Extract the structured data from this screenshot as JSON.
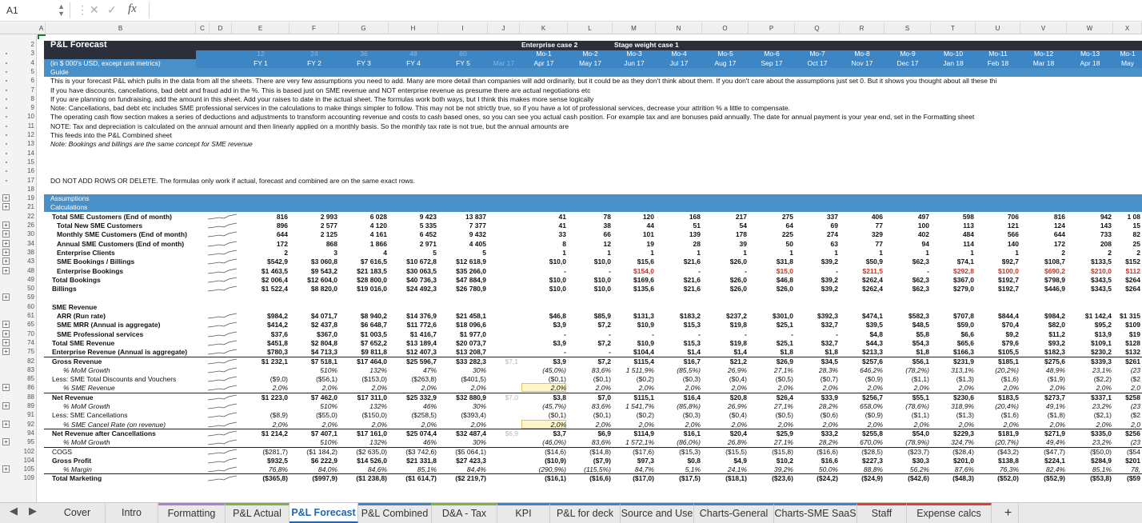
{
  "formula_bar": {
    "cell_ref": "A1",
    "formula": ""
  },
  "outline_levels": [
    "1",
    "2"
  ],
  "columns": [
    "A",
    "B",
    "C",
    "D",
    "E",
    "F",
    "G",
    "H",
    "I",
    "J",
    "K",
    "L",
    "M",
    "N",
    "O",
    "P",
    "Q",
    "R",
    "S",
    "T",
    "U",
    "V",
    "W",
    "X"
  ],
  "row_numbers": [
    "2",
    "3",
    "4",
    "5",
    "6",
    "7",
    "8",
    "9",
    "10",
    "11",
    "12",
    "13",
    "14",
    "15",
    "16",
    "17",
    "18",
    "19",
    "21",
    "22",
    "26",
    "30",
    "34",
    "38",
    "43",
    "48",
    "49",
    "50",
    "59",
    "60",
    "61",
    "65",
    "70",
    "74",
    "75",
    "82",
    "83",
    "85",
    "86",
    "88",
    "89",
    "91",
    "92",
    "94",
    "95",
    "102",
    "104",
    "105",
    "109"
  ],
  "header": {
    "title": "P&L Forecast",
    "enterprise_case": "Enterprise case 2",
    "stage_weight": "Stage weight case 1",
    "units_note": "(in $ 000's USD, except unit metrics)",
    "month_counts": [
      "12",
      "24",
      "36",
      "48",
      "60"
    ],
    "fy": [
      "FY 1",
      "FY 2",
      "FY 3",
      "FY 4",
      "FY 5"
    ],
    "j_label": "Mar 17",
    "months": [
      "Mo-1",
      "Mo-2",
      "Mo-3",
      "Mo-4",
      "Mo-5",
      "Mo-6",
      "Mo-7",
      "Mo-8",
      "Mo-9",
      "Mo-10",
      "Mo-11",
      "Mo-12",
      "Mo-13",
      "Mo-1"
    ],
    "dates": [
      "Apr 17",
      "May 17",
      "Jun 17",
      "Jul 17",
      "Aug 17",
      "Sep 17",
      "Oct 17",
      "Nov 17",
      "Dec 17",
      "Jan 18",
      "Feb 18",
      "Mar 18",
      "Apr 18",
      "May"
    ]
  },
  "guide": {
    "label": "Guide",
    "lines": [
      "This is your forecast P&L which pulls in the data from all the sheets. There are very few assumptions you need to add. Many are more detail than companies will add ordinarily, but it could be as they don't think about them. If you don't care about the assumptions just set 0. But it shows you thought about all these thi",
      "If you have discounts, cancellations, bad debt and fraud add in the %. This is based just on SME revenue and NOT enterprise revenue as presume there are actual negotiations etc",
      "If you are planning on fundraising, add the amount in this sheet. Add your raises to date in the actual sheet. The formulas work both ways, but I think this makes more sense logically",
      "Note: Cancellations, bad debt etc includes SME professional services in the calculations to make things simpler to follow. This may not be not strictly true, so if you have a lot of professional services, decrease your attrition % a little to compensate.",
      "The operating cash flow section makes a series of deductions and adjustments to transform accounting revenue and costs to cash based ones, so you can see you actual cash position. For example tax and are bonuses paid annually. The date for annual payment is your year end, set in the Formatting sheet",
      "NOTE: Tax and depreciation is calculated on the annual amount and then linearly applied on a monthly basis. So the monthly tax rate is not true, but the annual amounts are",
      "This feeds into the P&L Combined sheet",
      "Note: Bookings and billings are the same concept for SME revenue"
    ],
    "warning": "DO NOT ADD ROWS OR DELETE. The formulas only work if actual, forecast and combined are on the same exact rows."
  },
  "sections": {
    "assumptions": "Assumptions",
    "calculations": "Calculations"
  },
  "rows": [
    {
      "label": "Total SME Customers (End of month)",
      "bold": true,
      "fy": [
        "816",
        "2 993",
        "6 028",
        "9 423",
        "13 837"
      ],
      "j": "",
      "m": [
        "41",
        "78",
        "120",
        "168",
        "217",
        "275",
        "337",
        "406",
        "497",
        "598",
        "706",
        "816",
        "942",
        "1 08"
      ]
    },
    {
      "label": "Total New SME Customers",
      "bold": true,
      "fy": [
        "896",
        "2 577",
        "4 120",
        "5 335",
        "7 377"
      ],
      "j": "",
      "m": [
        "41",
        "38",
        "44",
        "51",
        "54",
        "64",
        "69",
        "77",
        "100",
        "113",
        "121",
        "124",
        "143",
        "15"
      ]
    },
    {
      "label": "Monthly SME Customers (End of month)",
      "bold": true,
      "fy": [
        "644",
        "2 125",
        "4 161",
        "6 452",
        "9 432"
      ],
      "j": "",
      "m": [
        "33",
        "66",
        "101",
        "139",
        "178",
        "225",
        "274",
        "329",
        "402",
        "484",
        "566",
        "644",
        "733",
        "82"
      ]
    },
    {
      "label": "Annual SME Customers (End of month)",
      "bold": true,
      "fy": [
        "172",
        "868",
        "1 866",
        "2 971",
        "4 405"
      ],
      "j": "",
      "m": [
        "8",
        "12",
        "19",
        "28",
        "39",
        "50",
        "63",
        "77",
        "94",
        "114",
        "140",
        "172",
        "208",
        "25"
      ]
    },
    {
      "label": "Enterprise Clients",
      "bold": true,
      "fy": [
        "2",
        "3",
        "4",
        "5",
        "5"
      ],
      "j": "",
      "m": [
        "1",
        "1",
        "1",
        "1",
        "1",
        "1",
        "1",
        "1",
        "1",
        "1",
        "1",
        "2",
        "2",
        "2"
      ]
    },
    {
      "label": "SME Bookings / Billings",
      "bold": true,
      "fy": [
        "$542,9",
        "$3 060,8",
        "$7 616,5",
        "$10 672,8",
        "$12 618,9"
      ],
      "j": "",
      "m": [
        "$10,0",
        "$10,0",
        "$15,6",
        "$21,6",
        "$26,0",
        "$31,8",
        "$39,2",
        "$50,9",
        "$62,3",
        "$74,1",
        "$92,7",
        "$108,7",
        "$133,5",
        "$152"
      ]
    },
    {
      "label": "Enterprise Bookings",
      "bold": true,
      "fy": [
        "$1 463,5",
        "$9 543,2",
        "$21 183,5",
        "$30 063,5",
        "$35 266,0"
      ],
      "j": "",
      "m": [
        "-",
        "-",
        "$154,0",
        "-",
        "-",
        "$15,0",
        "-",
        "$211,5",
        "-",
        "$292,8",
        "$100,0",
        "$690,2",
        "$210,0",
        "$112"
      ]
    },
    {
      "label": "Total Bookings",
      "bold": true,
      "fy": [
        "$2 006,4",
        "$12 604,0",
        "$28 800,0",
        "$40 736,3",
        "$47 884,9"
      ],
      "j": "",
      "m": [
        "$10,0",
        "$10,0",
        "$169,6",
        "$21,6",
        "$26,0",
        "$46,8",
        "$39,2",
        "$262,4",
        "$62,3",
        "$367,0",
        "$192,7",
        "$798,9",
        "$343,5",
        "$264"
      ]
    },
    {
      "label": "Billings",
      "bold": true,
      "fy": [
        "$1 522,4",
        "$8 820,0",
        "$19 016,0",
        "$24 492,3",
        "$26 780,9"
      ],
      "j": "",
      "m": [
        "$10,0",
        "$10,0",
        "$135,6",
        "$21,6",
        "$26,0",
        "$26,0",
        "$39,2",
        "$262,4",
        "$62,3",
        "$279,0",
        "$192,7",
        "$446,9",
        "$343,5",
        "$264"
      ]
    },
    {
      "label": "SME Revenue",
      "bold": true,
      "fy": [
        "",
        "",
        "",
        "",
        ""
      ],
      "j": "",
      "m": [
        "",
        "",
        "",
        "",
        "",
        "",
        "",
        "",
        "",
        "",
        "",
        "",
        "",
        ""
      ]
    },
    {
      "label": "ARR (Run rate)",
      "bold": true,
      "fy": [
        "$984,2",
        "$4 071,7",
        "$8 940,2",
        "$14 376,9",
        "$21 458,1"
      ],
      "j": "",
      "m": [
        "$46,8",
        "$85,9",
        "$131,3",
        "$183,2",
        "$237,2",
        "$301,0",
        "$392,3",
        "$474,1",
        "$582,3",
        "$707,8",
        "$844,4",
        "$984,2",
        "$1 142,4",
        "$1 315"
      ]
    },
    {
      "label": "SME MRR (Annual is aggregate)",
      "bold": true,
      "fy": [
        "$414,2",
        "$2 437,8",
        "$6 648,7",
        "$11 772,6",
        "$18 096,6"
      ],
      "j": "",
      "m": [
        "$3,9",
        "$7,2",
        "$10,9",
        "$15,3",
        "$19,8",
        "$25,1",
        "$32,7",
        "$39,5",
        "$48,5",
        "$59,0",
        "$70,4",
        "$82,0",
        "$95,2",
        "$109"
      ]
    },
    {
      "label": "SME Professional services",
      "bold": true,
      "fy": [
        "$37,6",
        "$367,0",
        "$1 003,5",
        "$1 416,7",
        "$1 977,0"
      ],
      "j": "",
      "m": [
        "-",
        "-",
        "-",
        "-",
        "-",
        "-",
        "-",
        "$4,8",
        "$5,8",
        "$6,6",
        "$9,2",
        "$11,2",
        "$13,9",
        "$19"
      ]
    },
    {
      "label": "Total SME Revenue",
      "bold": true,
      "fy": [
        "$451,8",
        "$2 804,8",
        "$7 652,2",
        "$13 189,4",
        "$20 073,7"
      ],
      "j": "",
      "m": [
        "$3,9",
        "$7,2",
        "$10,9",
        "$15,3",
        "$19,8",
        "$25,1",
        "$32,7",
        "$44,3",
        "$54,3",
        "$65,6",
        "$79,6",
        "$93,2",
        "$109,1",
        "$128"
      ]
    },
    {
      "label": "Enterprise Revenue (Annual is aggregate)",
      "bold": true,
      "fy": [
        "$780,3",
        "$4 713,3",
        "$9 811,8",
        "$12 407,3",
        "$13 208,7"
      ],
      "j": "",
      "m": [
        "-",
        "-",
        "$104,4",
        "$1,4",
        "$1,4",
        "$1,8",
        "$1,8",
        "$213,3",
        "$1,8",
        "$166,3",
        "$105,5",
        "$182,3",
        "$230,2",
        "$132"
      ]
    },
    {
      "label": "Gross Revenue",
      "bold": true,
      "fy": [
        "$1 232,1",
        "$7 518,1",
        "$17 464,0",
        "$25 596,7",
        "$33 282,3"
      ],
      "j": "$7,1",
      "m": [
        "$3,9",
        "$7,2",
        "$115,4",
        "$16,7",
        "$21,2",
        "$26,9",
        "$34,5",
        "$257,6",
        "$56,1",
        "$231,9",
        "$185,1",
        "$275,6",
        "$339,3",
        "$261"
      ]
    },
    {
      "label": "% MoM Growth",
      "ital": true,
      "fy": [
        "",
        "510%",
        "132%",
        "47%",
        "30%"
      ],
      "j": "",
      "m": [
        "(45,0%)",
        "83,6%",
        "1 511,9%",
        "(85,5%)",
        "26,9%",
        "27,1%",
        "28,3%",
        "646,2%",
        "(78,2%)",
        "313,1%",
        "(20,2%)",
        "48,9%",
        "23,1%",
        "(23"
      ]
    },
    {
      "label": "Less: SME Total Discounts and Vouchers",
      "fy": [
        "($9,0)",
        "($56,1)",
        "($153,0)",
        "($263,8)",
        "($401,5)"
      ],
      "j": "",
      "m": [
        "($0,1)",
        "($0,1)",
        "($0,2)",
        "($0,3)",
        "($0,4)",
        "($0,5)",
        "($0,7)",
        "($0,9)",
        "($1,1)",
        "($1,3)",
        "($1,6)",
        "($1,9)",
        "($2,2)",
        "($2"
      ]
    },
    {
      "label": "% SME Revenue",
      "ital": true,
      "fy": [
        "2,0%",
        "2,0%",
        "2,0%",
        "2,0%",
        "2,0%"
      ],
      "j": "",
      "m": [
        "2,0%",
        "2,0%",
        "2,0%",
        "2,0%",
        "2,0%",
        "2,0%",
        "2,0%",
        "2,0%",
        "2,0%",
        "2,0%",
        "2,0%",
        "2,0%",
        "2,0%",
        "2,0"
      ]
    },
    {
      "label": "Net Revenue",
      "bold": true,
      "fy": [
        "$1 223,0",
        "$7 462,0",
        "$17 311,0",
        "$25 332,9",
        "$32 880,9"
      ],
      "j": "$7,0",
      "m": [
        "$3,8",
        "$7,0",
        "$115,1",
        "$16,4",
        "$20,8",
        "$26,4",
        "$33,9",
        "$256,7",
        "$55,1",
        "$230,6",
        "$183,5",
        "$273,7",
        "$337,1",
        "$258"
      ]
    },
    {
      "label": "% MoM Growth",
      "ital": true,
      "fy": [
        "",
        "510%",
        "132%",
        "46%",
        "30%"
      ],
      "j": "",
      "m": [
        "(45,7%)",
        "83,6%",
        "1 541,7%",
        "(85,8%)",
        "26,9%",
        "27,1%",
        "28,2%",
        "658,0%",
        "(78,6%)",
        "318,9%",
        "(20,4%)",
        "49,1%",
        "23,2%",
        "(23"
      ]
    },
    {
      "label": "Less: SME Cancellations",
      "fy": [
        "($8,9)",
        "($55,0)",
        "($150,0)",
        "($258,5)",
        "($393,4)"
      ],
      "j": "",
      "m": [
        "($0,1)",
        "($0,1)",
        "($0,2)",
        "($0,3)",
        "($0,4)",
        "($0,5)",
        "($0,6)",
        "($0,9)",
        "($1,1)",
        "($1,3)",
        "($1,6)",
        "($1,8)",
        "($2,1)",
        "($2"
      ]
    },
    {
      "label": "% SME Cancel Rate (on revenue)",
      "ital": true,
      "fy": [
        "2,0%",
        "2,0%",
        "2,0%",
        "2,0%",
        "2,0%"
      ],
      "j": "",
      "m": [
        "2,0%",
        "2,0%",
        "2,0%",
        "2,0%",
        "2,0%",
        "2,0%",
        "2,0%",
        "2,0%",
        "2,0%",
        "2,0%",
        "2,0%",
        "2,0%",
        "2,0%",
        "2,0"
      ]
    },
    {
      "label": "Net Revenue after Cancellations",
      "bold": true,
      "fy": [
        "$1 214,2",
        "$7 407,1",
        "$17 161,0",
        "$25 074,4",
        "$32 487,4"
      ],
      "j": "$6,9",
      "m": [
        "$3,7",
        "$6,9",
        "$114,9",
        "$16,1",
        "$20,4",
        "$25,9",
        "$33,2",
        "$255,8",
        "$54,0",
        "$229,3",
        "$181,9",
        "$271,9",
        "$335,0",
        "$256"
      ]
    },
    {
      "label": "% MoM Growth",
      "ital": true,
      "fy": [
        "",
        "510%",
        "132%",
        "46%",
        "30%"
      ],
      "j": "",
      "m": [
        "(46,0%)",
        "83,6%",
        "1 572,1%",
        "(86,0%)",
        "26,8%",
        "27,1%",
        "28,2%",
        "670,0%",
        "(78,9%)",
        "324,7%",
        "(20,7%)",
        "49,4%",
        "23,2%",
        "(23"
      ]
    },
    {
      "label": "COGS",
      "fy": [
        "($281,7)",
        "($1 184,2)",
        "($2 635,0)",
        "($3 742,6)",
        "($5 064,1)"
      ],
      "j": "",
      "m": [
        "($14,6)",
        "($14,8)",
        "($17,6)",
        "($15,3)",
        "($15,5)",
        "($15,8)",
        "($16,6)",
        "($28,5)",
        "($23,7)",
        "($28,4)",
        "($43,2)",
        "($47,7)",
        "($50,0)",
        "($54"
      ]
    },
    {
      "label": "Gross Profit",
      "bold": true,
      "fy": [
        "$932,5",
        "$6 222,9",
        "$14 526,0",
        "$21 331,8",
        "$27 423,3"
      ],
      "j": "",
      "m": [
        "($10,9)",
        "($7,9)",
        "$97,3",
        "$0,8",
        "$4,9",
        "$10,2",
        "$16,6",
        "$227,3",
        "$30,3",
        "$201,0",
        "$138,8",
        "$224,1",
        "$284,9",
        "$201"
      ]
    },
    {
      "label": "% Margin",
      "ital": true,
      "fy": [
        "76,8%",
        "84,0%",
        "84,6%",
        "85,1%",
        "84,4%"
      ],
      "j": "",
      "m": [
        "(290,9%)",
        "(115,5%)",
        "84,7%",
        "5,1%",
        "24,1%",
        "39,2%",
        "50,0%",
        "88,8%",
        "56,2%",
        "87,6%",
        "76,3%",
        "82,4%",
        "85,1%",
        "78,"
      ]
    },
    {
      "label": "Total Marketing",
      "bold": true,
      "fy": [
        "($365,8)",
        "($997,9)",
        "($1 238,8)",
        "($1 614,7)",
        "($2 219,7)"
      ],
      "j": "",
      "m": [
        "($16,1)",
        "($16,6)",
        "($17,0)",
        "($17,5)",
        "($18,1)",
        "($23,6)",
        "($24,2)",
        "($24,9)",
        "($42,6)",
        "($48,3)",
        "($52,0)",
        "($52,9)",
        "($53,8)",
        "($59"
      ]
    }
  ],
  "tabs": [
    "Cover",
    "Intro",
    "Formatting",
    "P&L Actual",
    "P&L Forecast",
    "P&L Combined",
    "D&A - Tax",
    "KPI",
    "P&L for deck",
    "Source and Use",
    "Charts-General",
    "Charts-SME SaaS",
    "Staff",
    "Expense calcs"
  ],
  "active_tab": "P&L Forecast",
  "tab_colors": {
    "Formatting": "#b07fd6",
    "P&L Actual": "#7cb342",
    "P&L Forecast": "#3d86c6",
    "P&L Combined": "#3d86c6",
    "D&A - Tax": "#7cb342",
    "KPI": "#3d86c6",
    "P&L for deck": "#3d86c6",
    "Source and Use": "#3d86c6",
    "Charts-General": "#3d86c6",
    "Charts-SME SaaS": "#3d86c6",
    "Staff": "#e53935",
    "Expense calcs": "#e53935"
  },
  "add_sheet": "+"
}
